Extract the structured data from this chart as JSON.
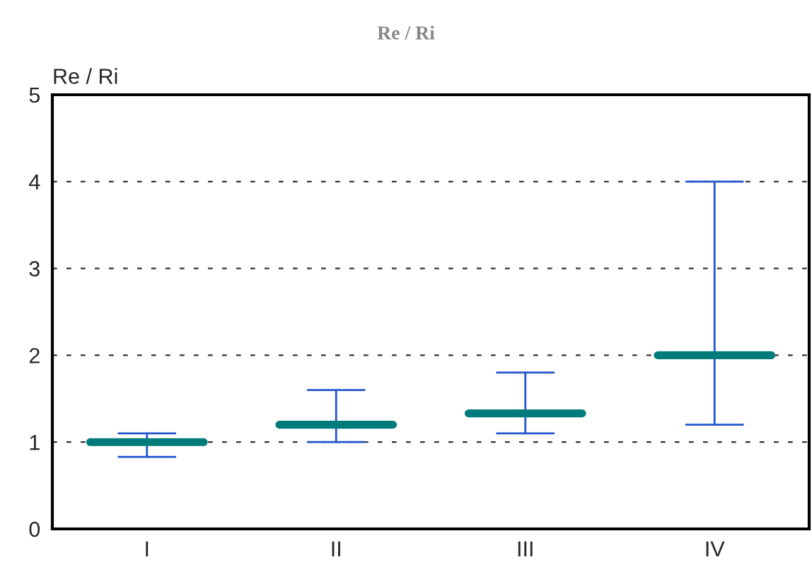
{
  "chart_data": {
    "type": "box",
    "title": "Re / Ri",
    "ylabel": "Re / Ri",
    "categories": [
      "I",
      "II",
      "III",
      "IV"
    ],
    "color": "#007b7b",
    "boxes": [
      {
        "low": 0.83,
        "q1": 1.0,
        "median": 1.0,
        "q3": 1.0,
        "high": 1.1
      },
      {
        "low": 1.0,
        "q1": 1.2,
        "median": 1.2,
        "q3": 1.2,
        "high": 1.6
      },
      {
        "low": 1.1,
        "q1": 1.33,
        "median": 1.33,
        "q3": 1.33,
        "high": 1.8
      },
      {
        "low": 1.2,
        "q1": 2.0,
        "median": 2.0,
        "q3": 2.0,
        "high": 4.0
      }
    ],
    "ylim": [
      0,
      5
    ],
    "yticks": [
      0,
      1,
      2,
      3,
      4,
      5
    ],
    "grid": "y",
    "line_style": "dashed"
  }
}
